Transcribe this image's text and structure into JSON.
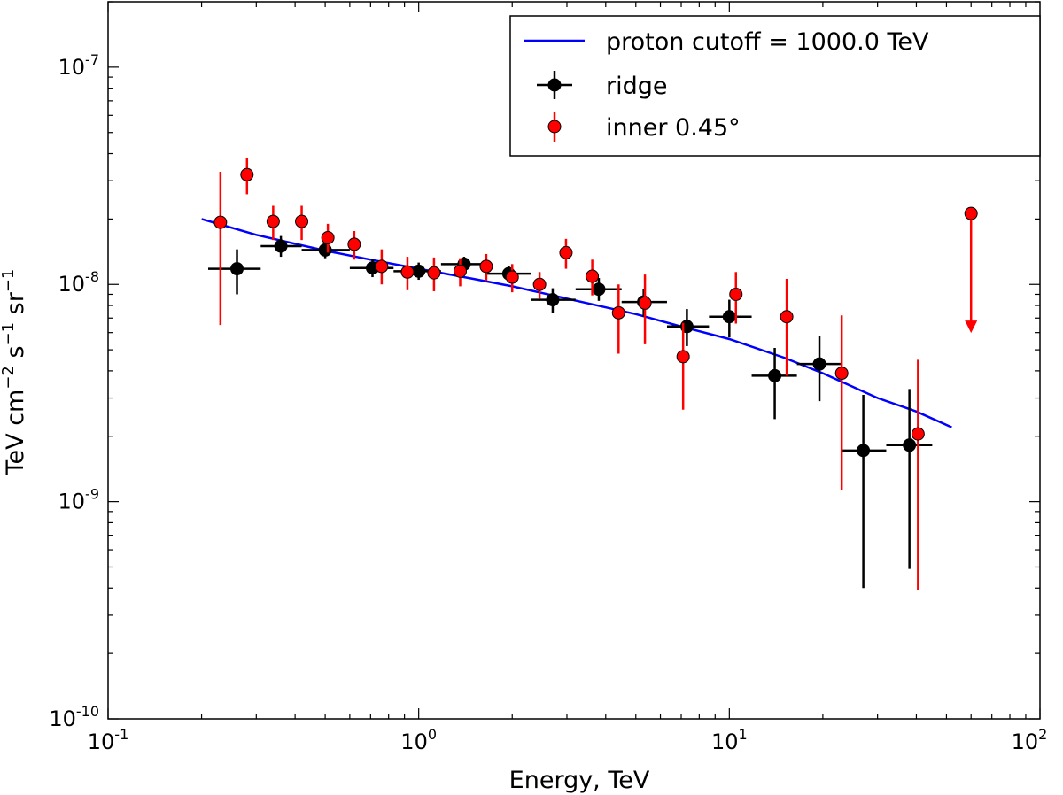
{
  "chart_data": {
    "type": "scatter",
    "title": "",
    "xlabel": "Energy, TeV",
    "ylabel": "TeV cm^-2 s^-1 sr^-1",
    "ylabel_parts": {
      "a": "TeV cm",
      "b": "−2",
      "c": " s",
      "d": "−1",
      "e": " sr",
      "f": "−1"
    },
    "x_scale": "log",
    "y_scale": "log",
    "xlim": [
      0.1,
      100
    ],
    "ylim": [
      1e-10,
      2e-07
    ],
    "x_ticks": [
      {
        "value": 0.1,
        "base": "10",
        "exp": "-1"
      },
      {
        "value": 1,
        "base": "10",
        "exp": "0"
      },
      {
        "value": 10,
        "base": "10",
        "exp": "1"
      },
      {
        "value": 100,
        "base": "10",
        "exp": "2"
      }
    ],
    "y_ticks": [
      {
        "value": 1e-10,
        "base": "10",
        "exp": "-10"
      },
      {
        "value": 1e-09,
        "base": "10",
        "exp": "-9"
      },
      {
        "value": 1e-08,
        "base": "10",
        "exp": "-8"
      },
      {
        "value": 1e-07,
        "base": "10",
        "exp": "-7"
      }
    ],
    "grid": false,
    "legend_position": "top-right",
    "model": {
      "name": "proton cutoff = 1000.0 TeV",
      "color": "#0000ff",
      "x": [
        0.2,
        0.3,
        0.5,
        0.7,
        1,
        1.5,
        2,
        3,
        5,
        7,
        10,
        15,
        20,
        30,
        40,
        52
      ],
      "y": [
        2e-08,
        1.69e-08,
        1.43e-08,
        1.3e-08,
        1.18e-08,
        1.06e-08,
        9.8e-09,
        8.6e-09,
        7.3e-09,
        6.4e-09,
        5.6e-09,
        4.6e-09,
        3.9e-09,
        3e-09,
        2.6e-09,
        2.2e-09
      ]
    },
    "series": [
      {
        "name": "ridge",
        "color": "#000000",
        "points": [
          {
            "x": 0.26,
            "y": 1.18e-08,
            "xlo": 0.21,
            "xhi": 0.31,
            "ylo": 9e-09,
            "yhi": 1.45e-08
          },
          {
            "x": 0.36,
            "y": 1.5e-08,
            "xlo": 0.31,
            "xhi": 0.42,
            "ylo": 1.34e-08,
            "yhi": 1.67e-08
          },
          {
            "x": 0.5,
            "y": 1.44e-08,
            "xlo": 0.42,
            "xhi": 0.6,
            "ylo": 1.32e-08,
            "yhi": 1.56e-08
          },
          {
            "x": 0.71,
            "y": 1.19e-08,
            "xlo": 0.6,
            "xhi": 0.83,
            "ylo": 1.08e-08,
            "yhi": 1.3e-08
          },
          {
            "x": 1.0,
            "y": 1.15e-08,
            "xlo": 0.83,
            "xhi": 1.18,
            "ylo": 1.05e-08,
            "yhi": 1.26e-08
          },
          {
            "x": 1.4,
            "y": 1.24e-08,
            "xlo": 1.18,
            "xhi": 1.65,
            "ylo": 1.14e-08,
            "yhi": 1.34e-08
          },
          {
            "x": 1.95,
            "y": 1.12e-08,
            "xlo": 1.65,
            "xhi": 2.3,
            "ylo": 1.02e-08,
            "yhi": 1.22e-08
          },
          {
            "x": 2.7,
            "y": 8.5e-09,
            "xlo": 2.3,
            "xhi": 3.2,
            "ylo": 7.4e-09,
            "yhi": 9.6e-09
          },
          {
            "x": 3.8,
            "y": 9.5e-09,
            "xlo": 3.2,
            "xhi": 4.5,
            "ylo": 8.4e-09,
            "yhi": 1.07e-08
          },
          {
            "x": 5.3,
            "y": 8.3e-09,
            "xlo": 4.5,
            "xhi": 6.3,
            "ylo": 7.1e-09,
            "yhi": 9.5e-09
          },
          {
            "x": 7.3,
            "y": 6.4e-09,
            "xlo": 6.3,
            "xhi": 8.6,
            "ylo": 5.2e-09,
            "yhi": 7.7e-09
          },
          {
            "x": 10.0,
            "y": 7.1e-09,
            "xlo": 8.6,
            "xhi": 11.8,
            "ylo": 5.7e-09,
            "yhi": 8.5e-09
          },
          {
            "x": 14.0,
            "y": 3.8e-09,
            "xlo": 11.8,
            "xhi": 16.5,
            "ylo": 2.4e-09,
            "yhi": 5.1e-09
          },
          {
            "x": 19.5,
            "y": 4.3e-09,
            "xlo": 16.5,
            "xhi": 23.0,
            "ylo": 2.9e-09,
            "yhi": 5.8e-09
          },
          {
            "x": 27.0,
            "y": 1.72e-09,
            "xlo": 23.0,
            "xhi": 32.0,
            "ylo": 4e-10,
            "yhi": 3.1e-09
          },
          {
            "x": 38.0,
            "y": 1.82e-09,
            "xlo": 32.0,
            "xhi": 45.0,
            "ylo": 4.9e-10,
            "yhi": 3.3e-09
          }
        ]
      },
      {
        "name": "inner 0.45°",
        "color": "#ff0000",
        "points": [
          {
            "x": 0.23,
            "y": 1.93e-08,
            "ylo": 6.5e-09,
            "yhi": 3.3e-08
          },
          {
            "x": 0.28,
            "y": 3.2e-08,
            "ylo": 2.6e-08,
            "yhi": 3.8e-08
          },
          {
            "x": 0.34,
            "y": 1.95e-08,
            "ylo": 1.6e-08,
            "yhi": 2.3e-08
          },
          {
            "x": 0.42,
            "y": 1.95e-08,
            "ylo": 1.6e-08,
            "yhi": 2.3e-08
          },
          {
            "x": 0.51,
            "y": 1.64e-08,
            "ylo": 1.4e-08,
            "yhi": 1.9e-08
          },
          {
            "x": 0.62,
            "y": 1.53e-08,
            "ylo": 1.3e-08,
            "yhi": 1.76e-08
          },
          {
            "x": 0.76,
            "y": 1.21e-08,
            "ylo": 1e-08,
            "yhi": 1.45e-08
          },
          {
            "x": 0.92,
            "y": 1.14e-08,
            "ylo": 9.4e-09,
            "yhi": 1.34e-08
          },
          {
            "x": 1.12,
            "y": 1.13e-08,
            "ylo": 9.3e-09,
            "yhi": 1.33e-08
          },
          {
            "x": 1.36,
            "y": 1.15e-08,
            "ylo": 9.8e-09,
            "yhi": 1.32e-08
          },
          {
            "x": 1.65,
            "y": 1.21e-08,
            "ylo": 1.04e-08,
            "yhi": 1.38e-08
          },
          {
            "x": 2.0,
            "y": 1.08e-08,
            "ylo": 9.2e-09,
            "yhi": 1.24e-08
          },
          {
            "x": 2.45,
            "y": 1e-08,
            "ylo": 8.6e-09,
            "yhi": 1.14e-08
          },
          {
            "x": 2.98,
            "y": 1.4e-08,
            "ylo": 1.18e-08,
            "yhi": 1.62e-08
          },
          {
            "x": 3.62,
            "y": 1.09e-08,
            "ylo": 8.9e-09,
            "yhi": 1.3e-08
          },
          {
            "x": 4.4,
            "y": 7.4e-09,
            "ylo": 4.8e-09,
            "yhi": 1e-08
          },
          {
            "x": 5.35,
            "y": 8.2e-09,
            "ylo": 5.3e-09,
            "yhi": 1.11e-08
          },
          {
            "x": 7.1,
            "y": 4.65e-09,
            "ylo": 2.65e-09,
            "yhi": 6.65e-09
          },
          {
            "x": 10.5,
            "y": 9e-09,
            "ylo": 6.6e-09,
            "yhi": 1.14e-08
          },
          {
            "x": 15.3,
            "y": 7.1e-09,
            "ylo": 3.8e-09,
            "yhi": 1.06e-08
          },
          {
            "x": 23.0,
            "y": 3.9e-09,
            "ylo": 1.13e-09,
            "yhi": 7.2e-09
          },
          {
            "x": 40.5,
            "y": 2.05e-09,
            "ylo": 3.9e-10,
            "yhi": 4.5e-09
          },
          {
            "x": 60.0,
            "y": 2.12e-08,
            "upper_limit": true,
            "arrow_to": 6.2e-09
          }
        ]
      }
    ]
  }
}
